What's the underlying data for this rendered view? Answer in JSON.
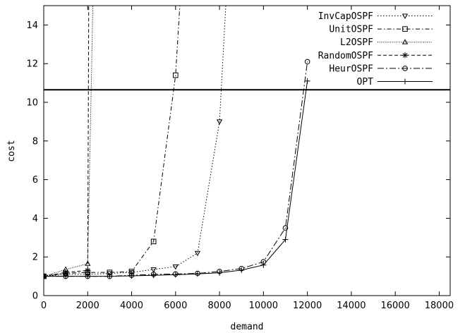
{
  "chart_data": {
    "type": "line",
    "xlabel": "demand",
    "ylabel": "cost",
    "xlim": [
      0,
      18500
    ],
    "ylim": [
      0,
      15
    ],
    "xticks": [
      0,
      2000,
      4000,
      6000,
      8000,
      10000,
      12000,
      14000,
      16000,
      18000
    ],
    "yticks": [
      0,
      2,
      4,
      6,
      8,
      10,
      12,
      14
    ],
    "grid": false,
    "legend_position": "top-right",
    "series": [
      {
        "name": "InvCapOSPF",
        "marker": "triangle-down",
        "dash": "dotted",
        "color": "#000000",
        "x": [
          0,
          1000,
          2000,
          3000,
          4000,
          5000,
          6000,
          7000,
          8000,
          9000
        ],
        "y": [
          1.0,
          1.1,
          1.1,
          1.15,
          1.2,
          1.35,
          1.5,
          2.2,
          9.0,
          30
        ]
      },
      {
        "name": "UnitOSPF",
        "marker": "square",
        "dash": "dash-dot",
        "color": "#000000",
        "x": [
          0,
          1000,
          2000,
          3000,
          4000,
          5000,
          6000,
          7000
        ],
        "y": [
          1.0,
          1.15,
          1.2,
          1.2,
          1.25,
          2.8,
          11.4,
          30
        ]
      },
      {
        "name": "L2OSPF",
        "marker": "triangle-up",
        "dash": "fine-dotted",
        "color": "#000000",
        "x": [
          0,
          1000,
          2000,
          2500
        ],
        "y": [
          1.0,
          1.35,
          1.65,
          30
        ]
      },
      {
        "name": "RandomOSPF",
        "marker": "asterisk",
        "dash": "dashed",
        "color": "#000000",
        "x": [
          0,
          1000,
          2000,
          2100
        ],
        "y": [
          1.0,
          1.2,
          1.3,
          30
        ]
      },
      {
        "name": "HeurOSPF",
        "marker": "circle",
        "dash": "long-dash-dot",
        "color": "#000000",
        "x": [
          0,
          1000,
          2000,
          3000,
          4000,
          5000,
          6000,
          7000,
          8000,
          9000,
          10000,
          11000,
          12000
        ],
        "y": [
          1.0,
          1.0,
          1.0,
          1.0,
          1.05,
          1.1,
          1.12,
          1.15,
          1.25,
          1.4,
          1.75,
          3.5,
          12.1
        ]
      },
      {
        "name": "OPT",
        "marker": "plus",
        "dash": "solid",
        "color": "#000000",
        "x": [
          0,
          1000,
          2000,
          3000,
          4000,
          5000,
          6000,
          7000,
          8000,
          9000,
          10000,
          11000,
          12000
        ],
        "y": [
          1.0,
          1.0,
          1.0,
          1.0,
          1.02,
          1.05,
          1.08,
          1.12,
          1.18,
          1.32,
          1.58,
          2.9,
          11.1
        ]
      }
    ],
    "hline": {
      "y": 10.65,
      "color": "#000000"
    }
  }
}
